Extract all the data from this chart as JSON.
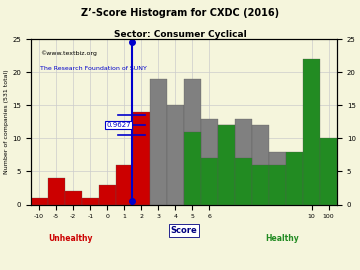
{
  "title": "Z’-Score Histogram for CXDC (2016)",
  "subtitle": "Sector: Consumer Cyclical",
  "xlabel": "Score",
  "ylabel": "Number of companies (531 total)",
  "watermark1": "©www.textbiz.org",
  "watermark2": "The Research Foundation of SUNY",
  "marker_value": 0.9627,
  "marker_label": "0.9627",
  "ylim": [
    0,
    25
  ],
  "yticks": [
    0,
    5,
    10,
    15,
    20,
    25
  ],
  "bg_color": "#f5f5dc",
  "grid_color": "#cccccc",
  "watermark1_color": "#000000",
  "watermark2_color": "#0000cc",
  "unhealthy_color": "#cc0000",
  "healthy_color": "#228B22",
  "marker_line_color": "#0000cc",
  "unhealthy_label": "Unhealthy",
  "healthy_label": "Healthy",
  "tick_labels": [
    "-10",
    "-5",
    "-2",
    "-1",
    "0",
    "1",
    "2",
    "3",
    "4",
    "5",
    "6",
    "10",
    "100"
  ],
  "bars": [
    {
      "bin_idx": 0,
      "height": 1,
      "color": "#cc0000"
    },
    {
      "bin_idx": 1,
      "height": 4,
      "color": "#cc0000"
    },
    {
      "bin_idx": 2,
      "height": 2,
      "color": "#cc0000"
    },
    {
      "bin_idx": 3,
      "height": 1,
      "color": "#cc0000"
    },
    {
      "bin_idx": 4,
      "height": 3,
      "color": "#cc0000"
    },
    {
      "bin_idx": 5,
      "height": 6,
      "color": "#cc0000"
    },
    {
      "bin_idx": 6,
      "height": 14,
      "color": "#cc0000"
    },
    {
      "bin_idx": 7,
      "height": 19,
      "color": "#808080"
    },
    {
      "bin_idx": 8,
      "height": 15,
      "color": "#808080"
    },
    {
      "bin_idx": 9,
      "height": 19,
      "color": "#808080"
    },
    {
      "bin_idx": 10,
      "height": 13,
      "color": "#808080"
    },
    {
      "bin_idx": 11,
      "height": 12,
      "color": "#808080"
    },
    {
      "bin_idx": 12,
      "height": 13,
      "color": "#808080"
    },
    {
      "bin_idx": 13,
      "height": 12,
      "color": "#808080"
    },
    {
      "bin_idx": 14,
      "height": 8,
      "color": "#808080"
    },
    {
      "bin_idx": 9,
      "height": 11,
      "color": "#228B22"
    },
    {
      "bin_idx": 10,
      "height": 7,
      "color": "#228B22"
    },
    {
      "bin_idx": 11,
      "height": 12,
      "color": "#228B22"
    },
    {
      "bin_idx": 12,
      "height": 7,
      "color": "#228B22"
    },
    {
      "bin_idx": 13,
      "height": 6,
      "color": "#228B22"
    },
    {
      "bin_idx": 14,
      "height": 6,
      "color": "#228B22"
    },
    {
      "bin_idx": 15,
      "height": 8,
      "color": "#228B22"
    },
    {
      "bin_idx": 16,
      "height": 22,
      "color": "#228B22"
    },
    {
      "bin_idx": 17,
      "height": 10,
      "color": "#228B22"
    }
  ],
  "tick_positions": [
    0,
    1,
    2,
    3,
    4,
    5,
    6,
    7,
    8,
    9,
    10,
    11,
    12,
    13,
    14,
    15,
    16,
    17,
    18
  ],
  "tick_at_bins": [
    0,
    1,
    2,
    3,
    4,
    5,
    6,
    7,
    8,
    9,
    10,
    11,
    12,
    13,
    14,
    15,
    16,
    17
  ],
  "xtick_at": [
    0.5,
    1.5,
    2.5,
    3.5,
    4.5,
    5.5,
    6.5,
    7.5,
    8.5,
    9.5,
    10.5,
    16.5,
    17.5
  ],
  "xtick_labels_show": [
    "-10",
    "-5",
    "-2",
    "-1",
    "0",
    "1",
    "2",
    "3",
    "4",
    "5",
    "6",
    "10",
    "100"
  ]
}
